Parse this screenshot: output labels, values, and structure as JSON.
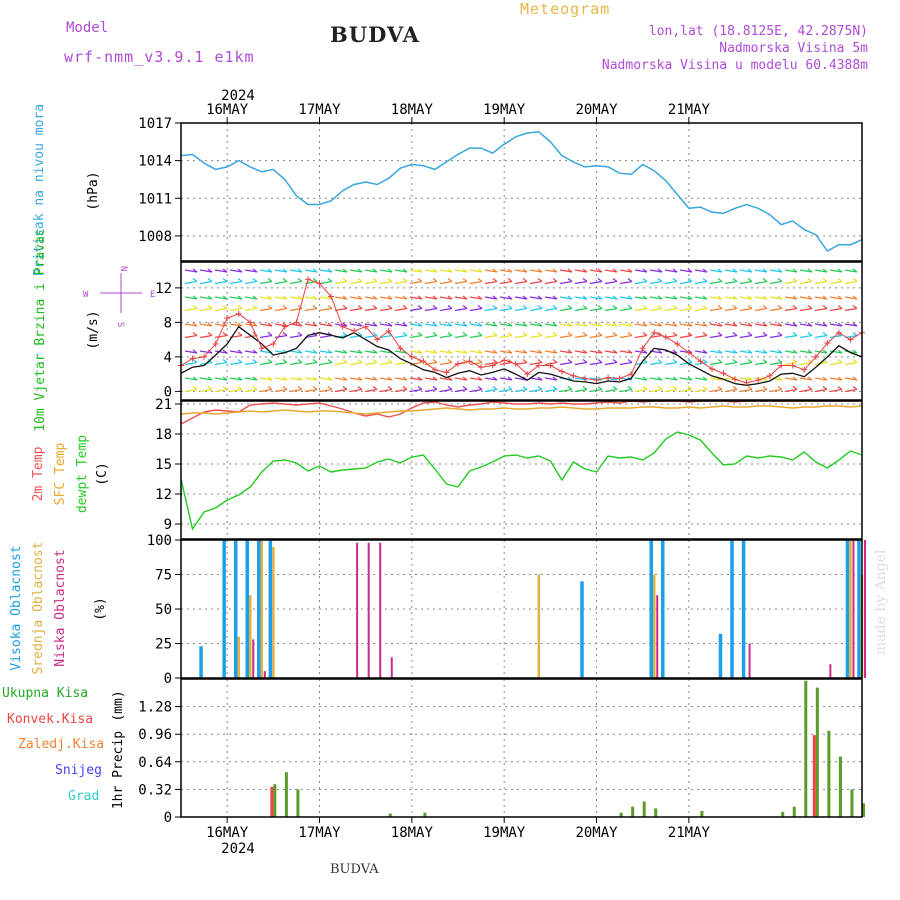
{
  "header": {
    "model_label": "Model",
    "model_name": "wrf-nmm_v3.9.1 e1km",
    "station": "BUDVA",
    "title": "Meteogram",
    "lonlat": "lon,lat (18.8125E, 42.2875N)",
    "elevation": "Nadmorska Visina 5m",
    "model_elevation": "Nadmorska Visina u modelu 60.4388m"
  },
  "footer": {
    "station": "BUDVA"
  },
  "credit": "made by Angel",
  "colors": {
    "pressure": "#3aa6e0",
    "wind_speed": "#111111",
    "wind_gust": "#e84040",
    "t2m": "#f05050",
    "tsfc": "#e8a830",
    "dewpt": "#22cc22",
    "cloud_high": "#1aa0ea",
    "cloud_mid": "#e0b040",
    "cloud_low": "#cc2a8a",
    "precip_total": "#5c9a2a",
    "precip_conv": "#ee4444",
    "precip_frz": "#f08030",
    "precip_snow": "#4444ee",
    "precip_hail": "#33cccc"
  },
  "chart_data": [
    {
      "type": "line",
      "ylabel": "Pritisak na nivou mora",
      "unit": "(hPa)",
      "ylim": [
        1006,
        1017
      ],
      "yticks": [
        1008,
        1011,
        1014,
        1017
      ],
      "x_start": "2024-05-15 12:00",
      "x_step_hours": 3,
      "series": [
        {
          "name": "Pritisak na nivou mora",
          "values": [
            1014.4,
            1014.5,
            1013.8,
            1013.3,
            1013.5,
            1014.0,
            1013.5,
            1013.1,
            1013.3,
            1012.5,
            1011.2,
            1010.5,
            1010.5,
            1010.8,
            1011.6,
            1012.1,
            1012.3,
            1012.1,
            1012.6,
            1013.4,
            1013.7,
            1013.6,
            1013.3,
            1013.9,
            1014.5,
            1015.0,
            1015.0,
            1014.6,
            1015.3,
            1015.9,
            1016.2,
            1016.3,
            1015.5,
            1014.4,
            1013.9,
            1013.5,
            1013.6,
            1013.5,
            1013.0,
            1012.9,
            1013.7,
            1013.2,
            1012.4,
            1011.3,
            1010.2,
            1010.3,
            1009.9,
            1009.8,
            1010.2,
            1010.5,
            1010.2,
            1009.7,
            1008.9,
            1009.2,
            1008.5,
            1008.1,
            1006.8,
            1007.3,
            1007.3,
            1007.7
          ]
        }
      ]
    },
    {
      "type": "line",
      "ylabel": "10m Vjetar Brzina i Pravac",
      "unit": "(m/s)",
      "direction_key": {
        "n": "N",
        "s": "S",
        "w": "W",
        "e": "E"
      },
      "ylim": [
        -1,
        15
      ],
      "yticks": [
        0,
        4,
        8,
        12
      ],
      "x_start": "2024-05-15 12:00",
      "x_step_hours": 3,
      "series": [
        {
          "name": "speed",
          "values": [
            2.1,
            2.8,
            3.0,
            4.2,
            5.5,
            7.5,
            6.5,
            5.5,
            4.2,
            4.5,
            5.0,
            6.5,
            6.8,
            6.5,
            6.2,
            6.8,
            6.0,
            5.2,
            4.8,
            3.8,
            3.2,
            2.5,
            2.2,
            1.6,
            2.1,
            2.4,
            1.9,
            2.2,
            2.6,
            2.0,
            1.3,
            2.2,
            2.0,
            1.6,
            1.2,
            1.1,
            0.9,
            1.2,
            1.1,
            1.5,
            3.5,
            5.0,
            4.8,
            4.2,
            3.2,
            2.5,
            1.8,
            1.4,
            0.9,
            0.7,
            0.9,
            1.2,
            2.0,
            2.1,
            1.7,
            2.8,
            4.0,
            5.3,
            4.5,
            4.0
          ]
        },
        {
          "name": "gust",
          "values": [
            3.0,
            3.8,
            4.0,
            5.5,
            8.5,
            9.0,
            8.0,
            5.0,
            5.5,
            7.5,
            8.0,
            13.0,
            12.5,
            11.0,
            7.5,
            7.0,
            7.5,
            6.0,
            7.0,
            5.0,
            4.0,
            3.5,
            2.5,
            2.2,
            3.2,
            3.5,
            2.8,
            3.0,
            3.6,
            3.2,
            2.0,
            3.0,
            3.0,
            2.3,
            1.8,
            1.5,
            1.3,
            1.6,
            1.5,
            2.0,
            5.0,
            6.8,
            6.3,
            5.5,
            4.5,
            3.5,
            2.6,
            2.1,
            1.4,
            1.0,
            1.3,
            1.8,
            3.0,
            3.0,
            2.5,
            4.0,
            5.6,
            6.8,
            6.0,
            6.8
          ]
        }
      ]
    },
    {
      "type": "line",
      "ylabels": [
        "2m Temp",
        "SFC Temp",
        "dewpt Temp"
      ],
      "unit": "(C)",
      "ylim": [
        7.5,
        21.3
      ],
      "yticks": [
        9,
        12,
        15,
        18,
        21
      ],
      "x_start": "2024-05-15 12:00",
      "x_step_hours": 3,
      "series": [
        {
          "name": "2m Temp",
          "values": [
            19.0,
            19.6,
            20.2,
            20.4,
            20.3,
            20.2,
            20.9,
            21.0,
            21.1,
            21.0,
            20.9,
            21.0,
            21.1,
            20.8,
            20.5,
            20.1,
            19.8,
            20.0,
            19.7,
            20.0,
            20.6,
            21.1,
            21.2,
            20.9,
            20.7,
            20.9,
            21.0,
            21.2,
            21.1,
            21.0,
            21.0,
            21.1,
            21.0,
            21.1,
            21.0,
            21.0,
            21.1,
            21.2,
            21.1,
            21.3,
            21.2,
            21.3,
            21.4,
            21.3,
            21.2,
            21.3,
            21.3,
            21.3,
            21.2,
            21.3,
            21.3,
            21.3,
            21.3,
            21.3,
            21.3,
            21.3,
            21.3,
            21.3,
            21.3,
            21.3
          ]
        },
        {
          "name": "SFC Temp",
          "values": [
            20.0,
            20.1,
            20.1,
            20.0,
            20.1,
            20.2,
            20.3,
            20.2,
            20.3,
            20.4,
            20.3,
            20.2,
            20.3,
            20.3,
            20.2,
            20.1,
            20.0,
            20.1,
            20.2,
            20.3,
            20.3,
            20.4,
            20.5,
            20.6,
            20.5,
            20.4,
            20.5,
            20.5,
            20.6,
            20.5,
            20.5,
            20.6,
            20.6,
            20.7,
            20.6,
            20.5,
            20.5,
            20.6,
            20.6,
            20.6,
            20.7,
            20.7,
            20.6,
            20.6,
            20.7,
            20.6,
            20.7,
            20.8,
            20.7,
            20.7,
            20.8,
            20.8,
            20.7,
            20.6,
            20.7,
            20.7,
            20.8,
            20.8,
            20.7,
            20.8
          ]
        },
        {
          "name": "dewpt Temp",
          "values": [
            13.5,
            8.5,
            10.2,
            10.6,
            11.4,
            11.9,
            12.7,
            14.2,
            15.3,
            15.4,
            15.1,
            14.3,
            14.8,
            14.2,
            14.4,
            14.5,
            14.6,
            15.2,
            15.5,
            15.1,
            15.7,
            15.9,
            14.5,
            13.0,
            12.7,
            14.3,
            14.7,
            15.2,
            15.8,
            15.9,
            15.6,
            15.8,
            15.3,
            13.4,
            15.2,
            14.5,
            14.2,
            15.8,
            15.6,
            15.7,
            15.4,
            16.1,
            17.5,
            18.2,
            17.9,
            17.4,
            16.1,
            14.9,
            15.0,
            15.8,
            15.6,
            15.8,
            15.7,
            15.4,
            16.2,
            15.2,
            14.6,
            15.4,
            16.3,
            15.9
          ]
        }
      ]
    },
    {
      "type": "bar",
      "ylabels": [
        "Visoka Oblacnost",
        "Srednja Oblacnost",
        "Niska Oblacnost"
      ],
      "unit": "(%)",
      "ylim": [
        0,
        100
      ],
      "yticks": [
        0,
        25,
        50,
        75,
        100
      ],
      "x_start": "2024-05-15 12:00",
      "x_step_hours": 3,
      "series": [
        {
          "name": "Visoka Oblacnost",
          "values": [
            0,
            0,
            23,
            0,
            100,
            100,
            100,
            100,
            100,
            0,
            0,
            0,
            0,
            0,
            0,
            0,
            0,
            0,
            0,
            0,
            0,
            0,
            0,
            0,
            0,
            0,
            0,
            0,
            0,
            0,
            0,
            0,
            0,
            0,
            0,
            70,
            0,
            0,
            0,
            0,
            0,
            100,
            100,
            0,
            0,
            0,
            0,
            32,
            100,
            100,
            0,
            0,
            0,
            0,
            0,
            0,
            0,
            0,
            100,
            100
          ]
        },
        {
          "name": "Srednja Oblacnost",
          "values": [
            0,
            0,
            0,
            0,
            0,
            30,
            60,
            100,
            95,
            0,
            0,
            0,
            0,
            0,
            0,
            0,
            0,
            0,
            0,
            0,
            0,
            0,
            0,
            0,
            0,
            0,
            0,
            0,
            0,
            0,
            0,
            75,
            0,
            0,
            0,
            0,
            0,
            0,
            0,
            0,
            0,
            75,
            0,
            0,
            0,
            0,
            0,
            0,
            0,
            0,
            0,
            0,
            0,
            0,
            0,
            0,
            0,
            0,
            100,
            75
          ]
        },
        {
          "name": "Niska Oblacnost",
          "values": [
            0,
            0,
            0,
            0,
            0,
            0,
            28,
            5,
            0,
            0,
            0,
            0,
            0,
            0,
            0,
            98,
            98,
            98,
            15,
            0,
            0,
            0,
            0,
            0,
            0,
            0,
            0,
            0,
            0,
            0,
            0,
            0,
            0,
            0,
            0,
            0,
            0,
            0,
            0,
            0,
            0,
            60,
            0,
            0,
            0,
            0,
            0,
            0,
            0,
            25,
            0,
            0,
            0,
            0,
            0,
            0,
            10,
            0,
            100,
            100
          ]
        }
      ]
    },
    {
      "type": "bar",
      "ylabel": "1hr Precip",
      "unit": "(mm)",
      "legend": [
        "Ukupna Kisa",
        "Konvek.Kisa",
        "Zaledj.Kisa",
        "Snijeg",
        "Grad"
      ],
      "ylim": [
        0,
        1.6
      ],
      "yticks": [
        0,
        0.32,
        0.64,
        0.96,
        1.28
      ],
      "x_start": "2024-05-15 12:00",
      "x_step_hours": 3,
      "series": [
        {
          "name": "Ukupna Kisa",
          "values": [
            0,
            0,
            0,
            0,
            0,
            0,
            0,
            0,
            0.38,
            0.52,
            0.32,
            0,
            0,
            0,
            0,
            0,
            0,
            0,
            0.04,
            0,
            0,
            0.05,
            0,
            0,
            0,
            0,
            0,
            0,
            0,
            0,
            0,
            0,
            0,
            0,
            0,
            0,
            0,
            0,
            0.05,
            0.12,
            0.18,
            0.1,
            0,
            0,
            0,
            0.07,
            0,
            0,
            0,
            0,
            0,
            0,
            0.06,
            0.12,
            1.58,
            1.5,
            1.0,
            0.7,
            0.32,
            0.16
          ]
        },
        {
          "name": "Konvek.Kisa",
          "values": [
            0,
            0,
            0,
            0,
            0,
            0,
            0,
            0,
            0.35,
            0,
            0,
            0,
            0,
            0,
            0,
            0,
            0,
            0,
            0,
            0,
            0,
            0,
            0,
            0,
            0,
            0,
            0,
            0,
            0,
            0,
            0,
            0,
            0,
            0,
            0,
            0,
            0,
            0,
            0,
            0,
            0,
            0,
            0,
            0,
            0,
            0,
            0,
            0,
            0,
            0,
            0,
            0,
            0,
            0,
            0,
            0.95,
            0,
            0,
            0,
            0
          ]
        }
      ]
    }
  ],
  "axis": {
    "year": "2024",
    "days": [
      "16MAY",
      "17MAY",
      "18MAY",
      "19MAY",
      "20MAY",
      "21MAY"
    ]
  }
}
